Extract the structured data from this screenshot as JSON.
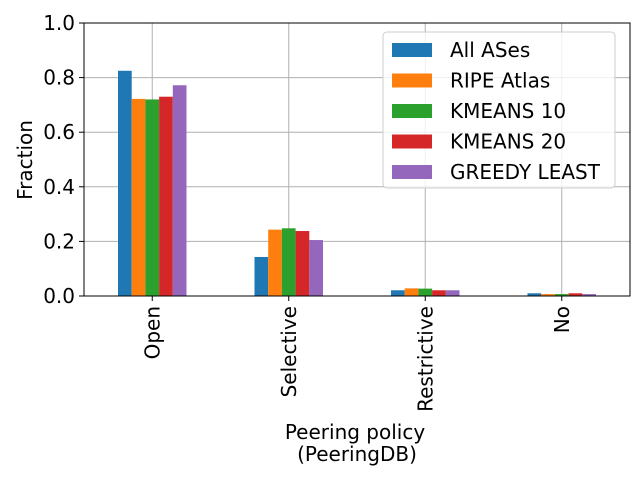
{
  "chart_data": {
    "type": "bar",
    "xlabel": "Peering policy",
    "xlabel_line2": "(PeeringDB)",
    "ylabel": "Fraction",
    "ylim": [
      0,
      1.0
    ],
    "yticks": [
      "0.0",
      "0.2",
      "0.4",
      "0.6",
      "0.8",
      "1.0"
    ],
    "categories": [
      "Open",
      "Selective",
      "Restrictive",
      "No"
    ],
    "grid": true,
    "legend_position": "top-right",
    "series": [
      {
        "name": "All ASes",
        "color": "#1f77b4",
        "values": [
          0.825,
          0.143,
          0.021,
          0.01
        ]
      },
      {
        "name": "RIPE Atlas",
        "color": "#ff7f0e",
        "values": [
          0.722,
          0.243,
          0.028,
          0.007
        ]
      },
      {
        "name": "KMEANS 10",
        "color": "#2ca02c",
        "values": [
          0.72,
          0.248,
          0.027,
          0.007
        ]
      },
      {
        "name": "KMEANS 20",
        "color": "#d62728",
        "values": [
          0.73,
          0.238,
          0.021,
          0.01
        ]
      },
      {
        "name": "GREEDY LEAST",
        "color": "#9467bd",
        "values": [
          0.772,
          0.205,
          0.021,
          0.007
        ]
      }
    ]
  }
}
